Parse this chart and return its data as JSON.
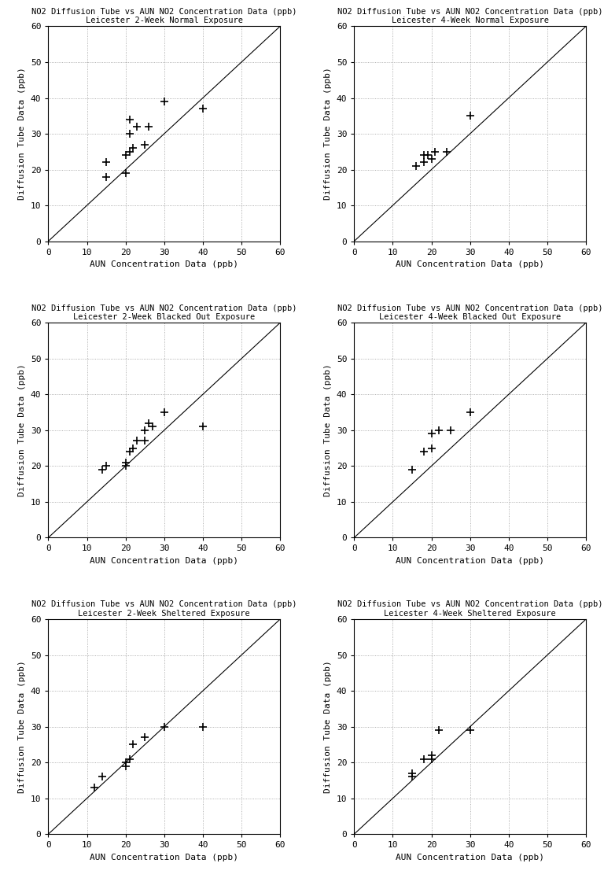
{
  "plots": [
    {
      "title": "NO2 Diffusion Tube vs AUN NO2 Concentration Data (ppb)\nLeicester 2-Week Normal Exposure",
      "x": [
        15,
        15,
        20,
        20,
        21,
        21,
        21,
        22,
        23,
        25,
        26,
        30,
        40
      ],
      "y": [
        18,
        22,
        19,
        24,
        25,
        30,
        34,
        26,
        32,
        27,
        32,
        39,
        37
      ]
    },
    {
      "title": "NO2 Diffusion Tube vs AUN NO2 Concentration Data (ppb)\nLeicester 4-Week Normal Exposure",
      "x": [
        16,
        18,
        18,
        19,
        20,
        21,
        24,
        30
      ],
      "y": [
        21,
        22,
        24,
        24,
        23,
        25,
        25,
        35
      ]
    },
    {
      "title": "NO2 Diffusion Tube vs AUN NO2 Concentration Data (ppb)\nLeicester 2-Week Blacked Out Exposure",
      "x": [
        14,
        15,
        20,
        20,
        21,
        22,
        23,
        25,
        25,
        26,
        27,
        30,
        40
      ],
      "y": [
        19,
        20,
        21,
        20,
        24,
        25,
        27,
        27,
        30,
        32,
        31,
        35,
        31
      ]
    },
    {
      "title": "NO2 Diffusion Tube vs AUN NO2 Concentration Data (ppb)\nLeicester 4-Week Blacked Out Exposure",
      "x": [
        15,
        18,
        20,
        20,
        22,
        25,
        30
      ],
      "y": [
        19,
        24,
        25,
        29,
        30,
        30,
        35
      ]
    },
    {
      "title": "NO2 Diffusion Tube vs AUN NO2 Concentration Data (ppb)\nLeicester 2-Week Sheltered Exposure",
      "x": [
        12,
        14,
        20,
        20,
        21,
        22,
        25,
        30,
        40
      ],
      "y": [
        13,
        16,
        19,
        20,
        21,
        25,
        27,
        30,
        30
      ]
    },
    {
      "title": "NO2 Diffusion Tube vs AUN NO2 Concentration Data (ppb)\nLeicester 4-Week Sheltered Exposure",
      "x": [
        15,
        15,
        18,
        20,
        20,
        22,
        30
      ],
      "y": [
        16,
        17,
        21,
        21,
        22,
        29,
        29
      ]
    }
  ],
  "xlabel": "AUN Concentration Data (ppb)",
  "ylabel": "Diffusion Tube Data (ppb)",
  "xlim": [
    0,
    60
  ],
  "ylim": [
    0,
    60
  ],
  "xticks": [
    0,
    10,
    20,
    30,
    40,
    50,
    60
  ],
  "yticks": [
    0,
    10,
    20,
    30,
    40,
    50,
    60
  ],
  "marker": "+",
  "marker_size": 7,
  "marker_color": "black",
  "line_color": "black",
  "grid_color": "#999999",
  "bg_color": "white",
  "title_fontsize": 7.5,
  "label_fontsize": 8,
  "tick_fontsize": 8
}
